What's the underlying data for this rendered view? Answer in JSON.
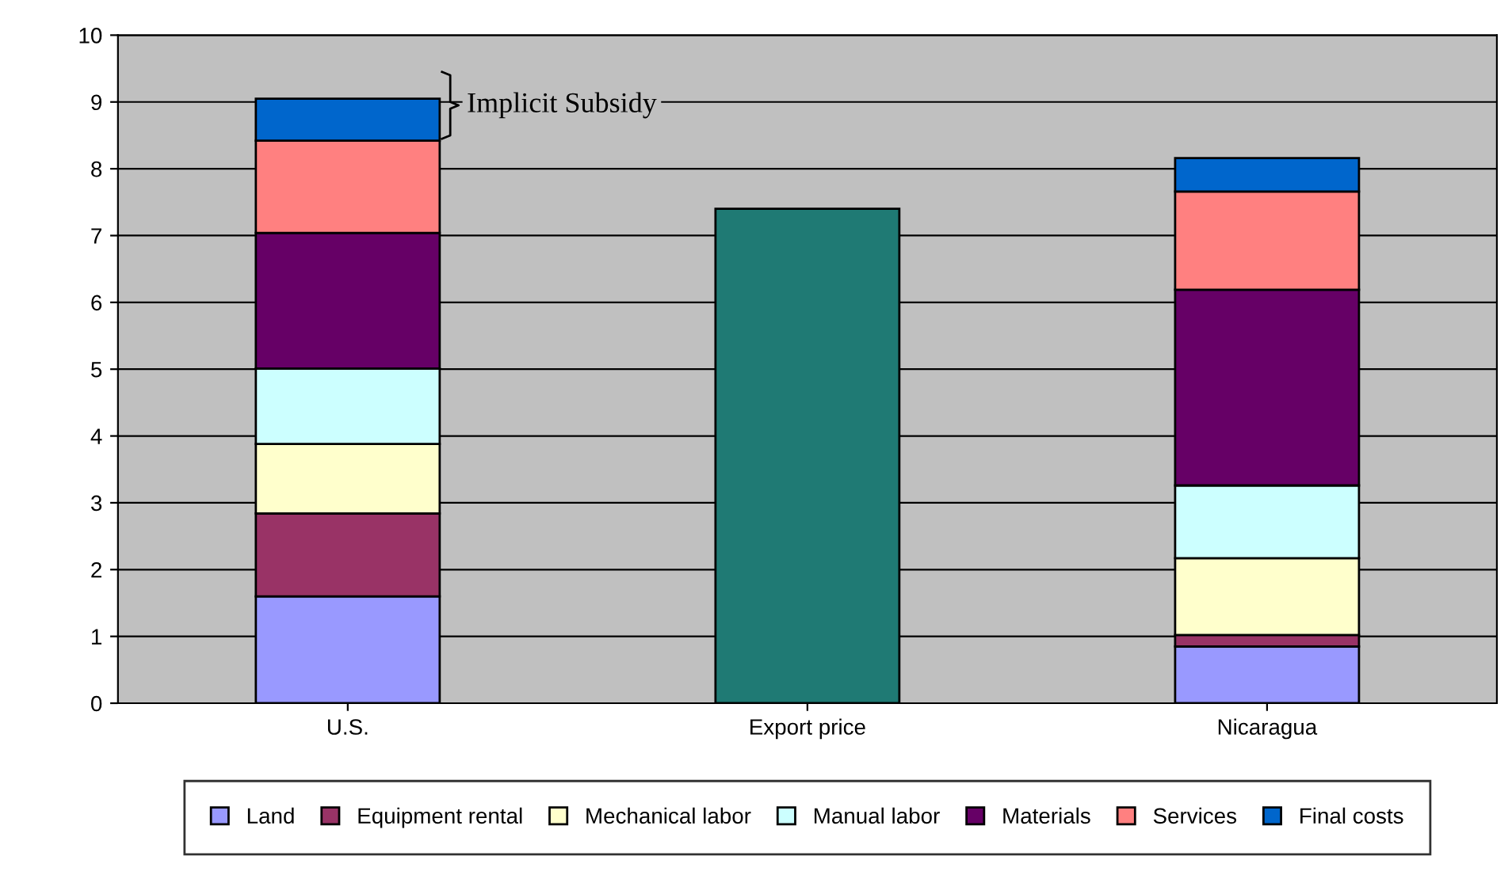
{
  "chart_data": {
    "type": "bar",
    "stacked": true,
    "categories": [
      "U.S.",
      "Export price",
      "Nicaragua"
    ],
    "series": [
      {
        "name": "Land",
        "color": "#9999ff",
        "values": [
          1.6,
          null,
          0.85
        ]
      },
      {
        "name": "Equipment rental",
        "color": "#993366",
        "values": [
          1.24,
          null,
          0.17
        ]
      },
      {
        "name": "Mechanical labor",
        "color": "#ffffcc",
        "values": [
          1.04,
          null,
          1.15
        ]
      },
      {
        "name": "Manual labor",
        "color": "#ccffff",
        "values": [
          1.13,
          null,
          1.09
        ]
      },
      {
        "name": "Materials",
        "color": "#660066",
        "values": [
          2.03,
          null,
          2.93
        ]
      },
      {
        "name": "Services",
        "color": "#ff8080",
        "values": [
          1.38,
          null,
          1.47
        ]
      },
      {
        "name": "Final costs",
        "color": "#0066cc",
        "values": [
          0.63,
          null,
          0.5
        ]
      },
      {
        "color": "#1f7a74",
        "values": [
          null,
          7.4,
          null
        ]
      }
    ],
    "ylim": [
      0,
      10
    ],
    "yticks": [
      0,
      1,
      2,
      3,
      4,
      5,
      6,
      7,
      8,
      9,
      10
    ],
    "grid": "y",
    "legend": "bottom",
    "annotations": [
      "Implicit Subsidy"
    ]
  }
}
